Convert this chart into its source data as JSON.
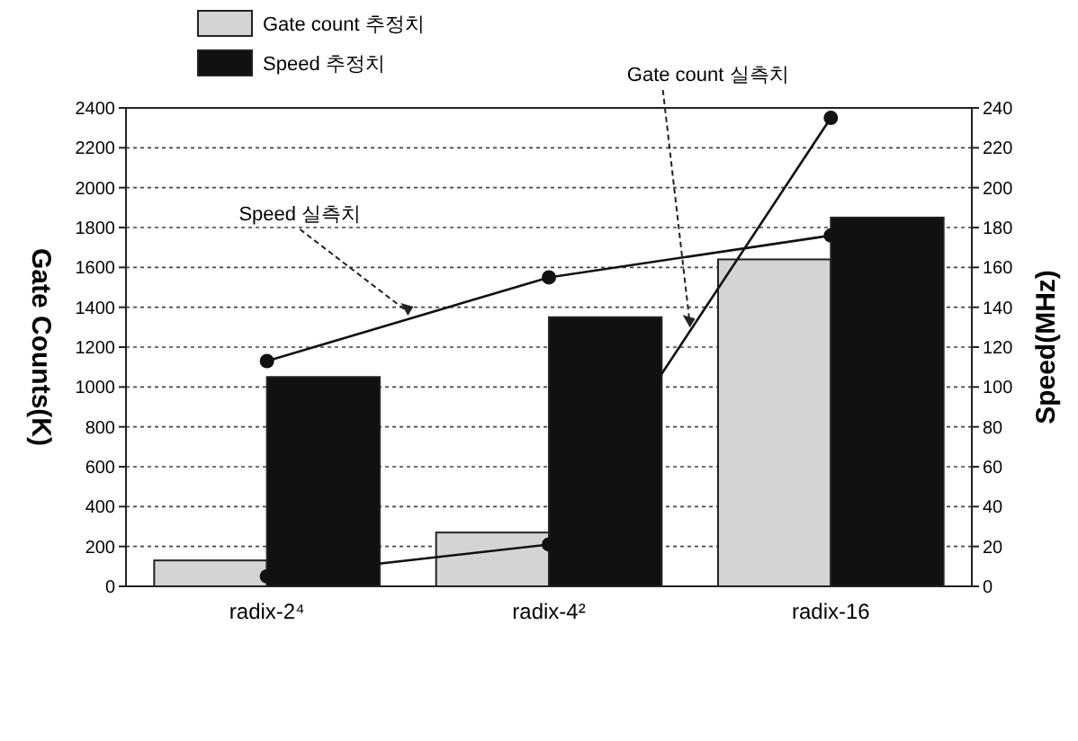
{
  "chart_data": {
    "type": "bar",
    "categories": [
      "radix-2⁴",
      "radix-4²",
      "radix-16"
    ],
    "ylabel": "Gate Counts(K)",
    "y2label": "Speed(MHz)",
    "ylim": [
      0,
      2400
    ],
    "yticks": [
      0,
      200,
      400,
      600,
      800,
      1000,
      1200,
      1400,
      1600,
      1800,
      2000,
      2200,
      2400
    ],
    "y2lim": [
      0,
      240
    ],
    "y2ticks": [
      0,
      20,
      40,
      60,
      80,
      100,
      120,
      140,
      160,
      180,
      200,
      220,
      240
    ],
    "grid": "y",
    "legend": "top left",
    "marker": "circle",
    "series": [
      {
        "name": "Gate count 추정치",
        "color": "#d4d4d4",
        "values": [
          130,
          270,
          1640
        ]
      },
      {
        "name": "Speed 추정치",
        "color": "#111111",
        "axis": "y2",
        "values": [
          105,
          135,
          185
        ]
      },
      {
        "name": "Gate count 실측치",
        "type": "line",
        "color": "#111111",
        "values": [
          50,
          210,
          2350
        ]
      },
      {
        "name": "Speed 실측치",
        "type": "line",
        "color": "#111111",
        "axis": "y2",
        "values": [
          113,
          155,
          176
        ]
      }
    ]
  }
}
